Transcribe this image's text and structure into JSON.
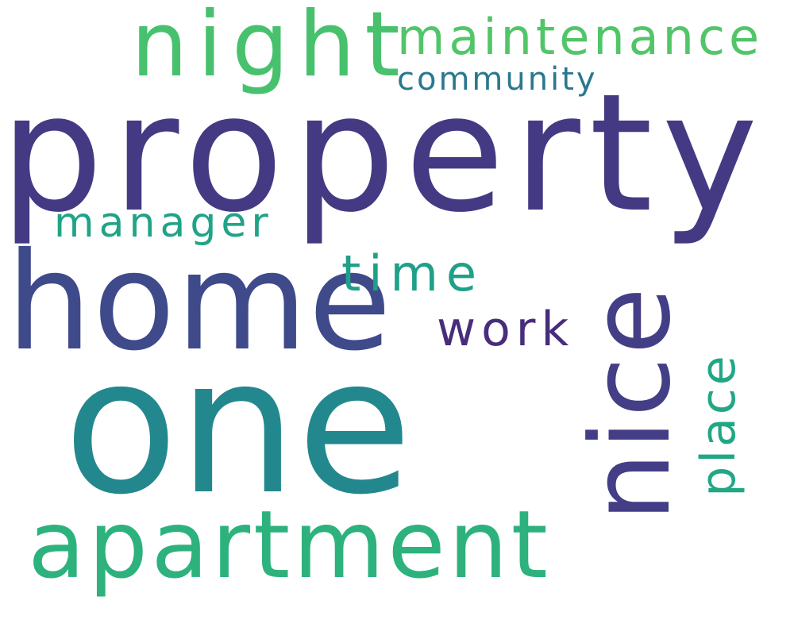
{
  "words": [
    {
      "text": "property",
      "color": "#443a83",
      "orientation": "horizontal"
    },
    {
      "text": "one",
      "color": "#23888e",
      "orientation": "horizontal"
    },
    {
      "text": "home",
      "color": "#3f4a8a",
      "orientation": "horizontal"
    },
    {
      "text": "nice",
      "color": "#433e85",
      "orientation": "vertical"
    },
    {
      "text": "apartment",
      "color": "#2db27d",
      "orientation": "horizontal"
    },
    {
      "text": "night",
      "color": "#48c16e",
      "orientation": "horizontal"
    },
    {
      "text": "maintenance",
      "color": "#52c569",
      "orientation": "horizontal"
    },
    {
      "text": "community",
      "color": "#2a788e",
      "orientation": "horizontal"
    },
    {
      "text": "manager",
      "color": "#20a386",
      "orientation": "horizontal"
    },
    {
      "text": "time",
      "color": "#1fa088",
      "orientation": "horizontal"
    },
    {
      "text": "work",
      "color": "#472d7b",
      "orientation": "horizontal"
    },
    {
      "text": "place",
      "color": "#22a785",
      "orientation": "vertical"
    }
  ]
}
